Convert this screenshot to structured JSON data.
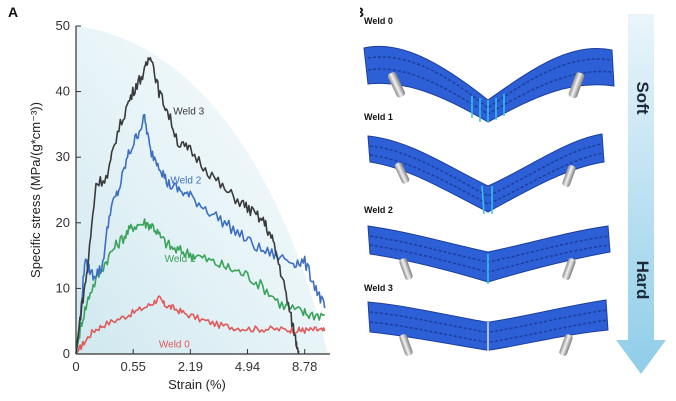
{
  "colors": {
    "weld0": "#e05a5a",
    "weld1": "#3aa35a",
    "weld2": "#3d6fc2",
    "weld3": "#3a3a3a",
    "beam": "#2d5fd6",
    "beam_dark": "#1c3f9c",
    "beam_cyan": "#33c6e8",
    "arrow_top": "#eaf5fb",
    "arrow_bottom": "#8fcde8",
    "envelope": "#cfe8ef"
  },
  "panel_a": {
    "letter": "A"
  },
  "panel_b": {
    "letter": "B",
    "welds": [
      "Weld 0",
      "Weld 1",
      "Weld 2",
      "Weld 3"
    ],
    "arrow_top": "Soft",
    "arrow_bottom": "Hard"
  },
  "chart_data": {
    "type": "line",
    "title": "",
    "xlabel": "Strain (%)",
    "ylabel": "Specific stress (MPa/(g*cm⁻³))",
    "x_tick_labels": [
      "0",
      "0.55",
      "2.19",
      "4.94",
      "8.78"
    ],
    "x_tick_positions": [
      0,
      1,
      2,
      3,
      4
    ],
    "y_ticks": [
      0,
      10,
      20,
      30,
      40,
      50
    ],
    "ylim": [
      0,
      50
    ],
    "xlim": [
      0,
      4.6
    ],
    "x_scale_note": "x axis is nonlinear (ticks equally spaced); x values below are in tick-index units",
    "series": [
      {
        "name": "Weld 0",
        "points": [
          [
            0,
            0
          ],
          [
            0.12,
            1.5
          ],
          [
            0.3,
            3.5
          ],
          [
            0.5,
            4.5
          ],
          [
            0.8,
            5.5
          ],
          [
            1.05,
            6.5
          ],
          [
            1.3,
            7.5
          ],
          [
            1.45,
            8.5
          ],
          [
            1.55,
            7.5
          ],
          [
            1.7,
            7
          ],
          [
            1.9,
            6.2
          ],
          [
            2.2,
            5.2
          ],
          [
            2.5,
            4.4
          ],
          [
            2.8,
            4
          ],
          [
            3.1,
            3.8
          ],
          [
            3.4,
            3.8
          ],
          [
            3.7,
            3.7
          ],
          [
            3.9,
            3.6
          ],
          [
            4.0,
            3.6
          ],
          [
            4.2,
            3.7
          ],
          [
            4.35,
            3.5
          ]
        ]
      },
      {
        "name": "Weld 1",
        "points": [
          [
            0,
            0
          ],
          [
            0.1,
            5
          ],
          [
            0.25,
            9.5
          ],
          [
            0.45,
            13
          ],
          [
            0.65,
            16
          ],
          [
            0.85,
            18
          ],
          [
            1.0,
            19.5
          ],
          [
            1.2,
            20
          ],
          [
            1.35,
            19.5
          ],
          [
            1.5,
            17.5
          ],
          [
            1.7,
            16
          ],
          [
            1.9,
            15.5
          ],
          [
            2.1,
            15
          ],
          [
            2.4,
            14
          ],
          [
            2.7,
            13
          ],
          [
            3.0,
            12
          ],
          [
            3.3,
            10
          ],
          [
            3.6,
            7.5
          ],
          [
            3.9,
            6.5
          ],
          [
            4.1,
            6
          ],
          [
            4.35,
            6
          ]
        ]
      },
      {
        "name": "Weld 2",
        "points": [
          [
            0,
            0
          ],
          [
            0.08,
            6
          ],
          [
            0.15,
            14
          ],
          [
            0.3,
            12
          ],
          [
            0.45,
            13
          ],
          [
            0.6,
            22
          ],
          [
            0.75,
            25
          ],
          [
            0.9,
            30
          ],
          [
            1.05,
            33
          ],
          [
            1.2,
            36
          ],
          [
            1.3,
            31
          ],
          [
            1.45,
            29
          ],
          [
            1.6,
            26
          ],
          [
            1.8,
            25
          ],
          [
            2.0,
            24
          ],
          [
            2.3,
            22
          ],
          [
            2.6,
            20
          ],
          [
            2.9,
            18
          ],
          [
            3.2,
            16
          ],
          [
            3.5,
            15
          ],
          [
            3.8,
            14
          ],
          [
            4.0,
            14
          ],
          [
            4.2,
            10
          ],
          [
            4.35,
            7
          ]
        ]
      },
      {
        "name": "Weld 3",
        "points": [
          [
            0,
            0
          ],
          [
            0.08,
            6
          ],
          [
            0.2,
            13
          ],
          [
            0.35,
            26
          ],
          [
            0.55,
            27
          ],
          [
            0.7,
            33
          ],
          [
            0.9,
            38
          ],
          [
            1.05,
            41
          ],
          [
            1.2,
            43
          ],
          [
            1.3,
            46
          ],
          [
            1.45,
            40
          ],
          [
            1.6,
            37
          ],
          [
            1.8,
            32
          ],
          [
            2.0,
            31
          ],
          [
            2.3,
            28
          ],
          [
            2.6,
            25
          ],
          [
            2.9,
            23
          ],
          [
            3.1,
            21.5
          ],
          [
            3.3,
            20
          ],
          [
            3.45,
            17
          ],
          [
            3.6,
            12
          ],
          [
            3.75,
            6
          ],
          [
            3.85,
            2
          ],
          [
            3.9,
            0.5
          ]
        ]
      }
    ]
  }
}
